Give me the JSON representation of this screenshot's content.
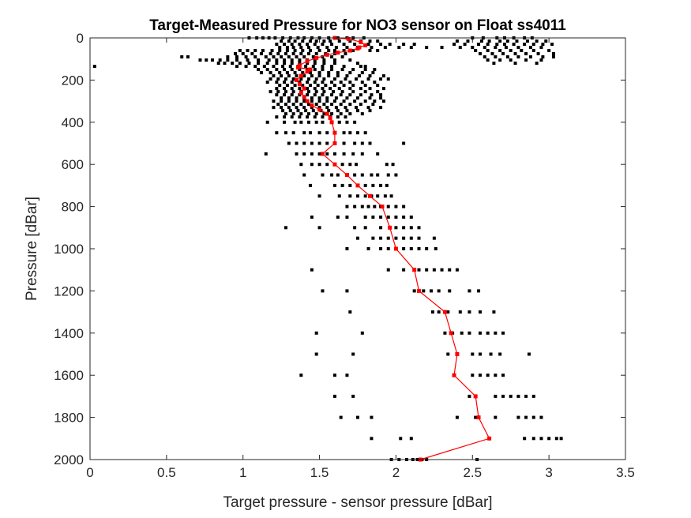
{
  "chart_data": {
    "type": "scatter",
    "title": "Target-Measured Pressure for NO3 sensor on Float ss4011",
    "xlabel": "Target pressure - sensor pressure [dBar]",
    "ylabel": "Pressure [dBar]",
    "xlim": [
      0,
      3.5
    ],
    "ylim": [
      0,
      2000
    ],
    "y_reversed": true,
    "x_ticks": [
      "0",
      "0.5",
      "1",
      "1.5",
      "2",
      "2.5",
      "3",
      "3.5"
    ],
    "y_ticks": [
      "0",
      "200",
      "400",
      "600",
      "800",
      "1000",
      "1200",
      "1400",
      "1600",
      "1800",
      "2000"
    ],
    "grid": false,
    "colors": {
      "points": "#000000",
      "mean_line": "#ff0000",
      "axes": "#262626"
    },
    "series": [
      {
        "marker": "square",
        "color": "#000000",
        "rows": [
          {
            "y": 0,
            "x": [
              1.04,
              1.09,
              1.13,
              1.17,
              1.21,
              1.26,
              1.31,
              1.36,
              1.4,
              1.45,
              1.5,
              1.56,
              1.62,
              1.68,
              1.72,
              1.79,
              2.5,
              2.57,
              2.66,
              2.71,
              2.77,
              2.84,
              2.89
            ]
          },
          {
            "y": 15,
            "x": [
              1.25,
              1.3,
              1.34,
              1.39,
              1.44,
              1.48,
              1.53,
              1.57,
              1.63,
              1.7,
              1.77,
              1.83,
              1.88,
              2.4,
              2.47,
              2.56,
              2.61,
              2.68,
              2.73,
              2.79,
              2.86,
              2.92,
              2.98
            ]
          },
          {
            "y": 30,
            "x": [
              1.22,
              1.27,
              1.32,
              1.37,
              1.42,
              1.47,
              1.52,
              1.58,
              1.66,
              1.73,
              1.82,
              1.9,
              1.96,
              2.05,
              2.12,
              2.38,
              2.45,
              2.54,
              2.6,
              2.66,
              2.71,
              2.77,
              2.84,
              2.9,
              2.96,
              3.02
            ]
          },
          {
            "y": 45,
            "x": [
              1.24,
              1.29,
              1.33,
              1.38,
              1.43,
              1.49,
              1.55,
              1.61,
              1.68,
              1.75,
              1.84,
              1.93,
              2.02,
              2.1,
              2.2,
              2.3,
              2.42,
              2.5,
              2.58,
              2.65,
              2.72,
              2.8,
              2.88,
              2.95
            ]
          },
          {
            "y": 60,
            "x": [
              0.98,
              1.03,
              1.08,
              1.13,
              1.19,
              1.24,
              1.29,
              1.34,
              1.39,
              1.44,
              1.5,
              1.56,
              1.6,
              1.66,
              1.72,
              1.83,
              1.88,
              2.52,
              2.6,
              2.68,
              2.75,
              2.82,
              2.9,
              3.0
            ]
          },
          {
            "y": 75,
            "x": [
              0.95,
              1.0,
              1.06,
              1.12,
              1.18,
              1.23,
              1.28,
              1.33,
              1.38,
              1.43,
              1.48,
              1.54,
              1.6,
              1.67,
              2.55,
              2.63,
              2.7,
              2.78,
              2.85,
              2.93,
              3.03
            ]
          },
          {
            "y": 90,
            "x": [
              0.6,
              0.64,
              0.9,
              0.96,
              1.02,
              1.08,
              1.15,
              1.2,
              1.25,
              1.3,
              1.35,
              1.4,
              1.46,
              1.52,
              1.58,
              1.65,
              2.58,
              2.65,
              2.73,
              2.8,
              2.88,
              2.96,
              3.03
            ]
          },
          {
            "y": 105,
            "x": [
              0.72,
              0.76,
              0.8,
              0.85,
              0.9,
              0.96,
              1.03,
              1.1,
              1.17,
              1.22,
              1.27,
              1.32,
              1.37,
              1.42,
              1.47,
              1.53,
              1.6,
              1.7,
              2.6,
              2.68,
              2.75,
              2.85,
              2.95
            ]
          },
          {
            "y": 120,
            "x": [
              0.84,
              0.88,
              0.93,
              0.98,
              1.04,
              1.1,
              1.16,
              1.22,
              1.27,
              1.32,
              1.37,
              1.42,
              1.47,
              1.53,
              1.6,
              1.75,
              2.64,
              2.78,
              2.92
            ]
          },
          {
            "y": 135,
            "x": [
              0.03,
              0.96,
              1.02,
              1.08,
              1.14,
              1.2,
              1.26,
              1.31,
              1.36,
              1.41,
              1.46,
              1.52,
              1.58,
              1.66,
              1.77,
              1.8
            ]
          },
          {
            "y": 150,
            "x": [
              1.1,
              1.16,
              1.22,
              1.27,
              1.32,
              1.37,
              1.42,
              1.47,
              1.52,
              1.58,
              1.65,
              1.72,
              1.8,
              1.86
            ]
          },
          {
            "y": 165,
            "x": [
              1.12,
              1.18,
              1.24,
              1.29,
              1.34,
              1.39,
              1.44,
              1.5,
              1.56,
              1.62,
              1.7,
              1.78,
              1.85
            ]
          },
          {
            "y": 180,
            "x": [
              1.2,
              1.25,
              1.3,
              1.35,
              1.4,
              1.45,
              1.5,
              1.56,
              1.62,
              1.68,
              1.76,
              1.83,
              1.92
            ]
          },
          {
            "y": 195,
            "x": [
              1.18,
              1.23,
              1.28,
              1.33,
              1.38,
              1.43,
              1.48,
              1.53,
              1.6,
              1.67,
              1.74,
              1.82,
              1.9,
              1.95
            ]
          },
          {
            "y": 210,
            "x": [
              1.16,
              1.22,
              1.27,
              1.32,
              1.37,
              1.42,
              1.47,
              1.52,
              1.58,
              1.64,
              1.7,
              1.78,
              1.86
            ]
          },
          {
            "y": 225,
            "x": [
              1.24,
              1.29,
              1.34,
              1.39,
              1.44,
              1.49,
              1.54,
              1.6,
              1.66,
              1.72,
              1.8,
              1.88
            ]
          },
          {
            "y": 240,
            "x": [
              1.22,
              1.27,
              1.32,
              1.37,
              1.42,
              1.47,
              1.52,
              1.57,
              1.63,
              1.7,
              1.77,
              1.83,
              1.92
            ]
          },
          {
            "y": 255,
            "x": [
              1.18,
              1.23,
              1.28,
              1.33,
              1.38,
              1.43,
              1.48,
              1.53,
              1.59,
              1.65,
              1.72,
              1.8,
              1.88
            ]
          },
          {
            "y": 270,
            "x": [
              1.22,
              1.27,
              1.32,
              1.37,
              1.42,
              1.47,
              1.52,
              1.58,
              1.64,
              1.7,
              1.77,
              1.84,
              1.9
            ]
          },
          {
            "y": 285,
            "x": [
              1.25,
              1.3,
              1.35,
              1.4,
              1.45,
              1.5,
              1.55,
              1.61,
              1.68,
              1.75,
              1.83,
              1.9
            ]
          },
          {
            "y": 300,
            "x": [
              1.2,
              1.25,
              1.3,
              1.35,
              1.4,
              1.45,
              1.5,
              1.55,
              1.6,
              1.66,
              1.73,
              1.8,
              1.86,
              1.92
            ]
          },
          {
            "y": 315,
            "x": [
              1.23,
              1.28,
              1.33,
              1.38,
              1.43,
              1.48,
              1.53,
              1.58,
              1.64,
              1.7,
              1.77,
              1.85
            ]
          },
          {
            "y": 330,
            "x": [
              1.2,
              1.25,
              1.3,
              1.35,
              1.4,
              1.45,
              1.5,
              1.55,
              1.61,
              1.67,
              1.74,
              1.82,
              1.9
            ]
          },
          {
            "y": 345,
            "x": [
              1.26,
              1.31,
              1.36,
              1.41,
              1.46,
              1.51,
              1.56,
              1.62,
              1.68,
              1.75,
              1.83
            ]
          },
          {
            "y": 360,
            "x": [
              1.28,
              1.33,
              1.38,
              1.43,
              1.48,
              1.53,
              1.58,
              1.64,
              1.7,
              1.78
            ]
          },
          {
            "y": 375,
            "x": [
              1.22,
              1.27,
              1.32,
              1.37,
              1.42,
              1.47,
              1.52,
              1.57,
              1.62,
              1.67
            ]
          },
          {
            "y": 400,
            "x": [
              1.16,
              1.27,
              1.34,
              1.38,
              1.43,
              1.48,
              1.52,
              1.58,
              1.63,
              1.68,
              1.73
            ]
          },
          {
            "y": 450,
            "x": [
              1.22,
              1.28,
              1.33,
              1.4,
              1.44,
              1.5,
              1.55,
              1.6,
              1.66,
              1.7,
              1.75,
              1.8
            ]
          },
          {
            "y": 500,
            "x": [
              1.3,
              1.35,
              1.4,
              1.45,
              1.5,
              1.55,
              1.6,
              1.66,
              1.73,
              1.78,
              1.83,
              2.05
            ]
          },
          {
            "y": 550,
            "x": [
              1.15,
              1.35,
              1.4,
              1.45,
              1.5,
              1.55,
              1.6,
              1.66,
              1.72,
              1.78,
              1.88
            ]
          },
          {
            "y": 600,
            "x": [
              1.38,
              1.45,
              1.5,
              1.55,
              1.6,
              1.65,
              1.7,
              1.74,
              1.94,
              1.98
            ]
          },
          {
            "y": 650,
            "x": [
              1.4,
              1.52,
              1.58,
              1.62,
              1.68,
              1.73,
              1.78,
              1.84,
              1.88,
              1.95,
              2.0
            ]
          },
          {
            "y": 700,
            "x": [
              1.44,
              1.6,
              1.65,
              1.7,
              1.75,
              1.8,
              1.85,
              1.9,
              1.94
            ]
          },
          {
            "y": 750,
            "x": [
              1.5,
              1.63,
              1.7,
              1.75,
              1.8,
              1.84,
              1.88,
              1.93,
              1.97
            ]
          },
          {
            "y": 800,
            "x": [
              1.68,
              1.73,
              1.78,
              1.82,
              1.86,
              1.9,
              1.95,
              2.0,
              2.05
            ]
          },
          {
            "y": 850,
            "x": [
              1.45,
              1.62,
              1.68,
              1.8,
              1.85,
              1.9,
              1.95,
              2.0,
              2.05,
              2.1
            ]
          },
          {
            "y": 900,
            "x": [
              1.28,
              1.5,
              1.73,
              1.8,
              1.9,
              1.96,
              2.0,
              2.05,
              2.1,
              2.15
            ]
          },
          {
            "y": 950,
            "x": [
              1.75,
              1.85,
              1.9,
              1.95,
              2.0,
              2.05,
              2.1,
              2.15,
              2.25
            ]
          },
          {
            "y": 1000,
            "x": [
              1.68,
              1.82,
              1.9,
              1.95,
              2.0,
              2.05,
              2.1,
              2.15,
              2.2,
              2.26
            ]
          },
          {
            "y": 1100,
            "x": [
              1.45,
              1.95,
              2.05,
              2.15,
              2.2,
              2.25,
              2.3,
              2.35,
              2.4
            ]
          },
          {
            "y": 1200,
            "x": [
              1.52,
              1.68,
              2.12,
              2.18,
              2.23,
              2.28,
              2.35,
              2.48,
              2.54
            ]
          },
          {
            "y": 1300,
            "x": [
              1.7,
              2.24,
              2.28,
              2.34,
              2.42,
              2.48,
              2.55,
              2.64
            ]
          },
          {
            "y": 1400,
            "x": [
              1.48,
              1.78,
              2.32,
              2.37,
              2.43,
              2.48,
              2.55,
              2.6,
              2.65,
              2.7
            ]
          },
          {
            "y": 1500,
            "x": [
              1.48,
              1.72,
              2.34,
              2.4,
              2.5,
              2.55,
              2.62,
              2.68,
              2.87
            ]
          },
          {
            "y": 1600,
            "x": [
              1.38,
              1.6,
              1.68,
              2.38,
              2.5,
              2.55,
              2.6,
              2.65,
              2.7
            ]
          },
          {
            "y": 1700,
            "x": [
              1.6,
              1.72,
              2.48,
              2.65,
              2.7,
              2.75,
              2.8,
              2.85,
              2.9
            ]
          },
          {
            "y": 1800,
            "x": [
              1.64,
              1.75,
              1.84,
              2.4,
              2.52,
              2.65,
              2.8,
              2.85,
              2.9,
              2.95
            ]
          },
          {
            "y": 1900,
            "x": [
              1.84,
              2.03,
              2.1,
              2.84,
              2.9,
              2.95,
              3.0,
              3.05,
              3.08
            ]
          },
          {
            "y": 2000,
            "x": [
              1.97,
              2.02,
              2.07,
              2.11,
              2.14,
              2.17,
              2.2,
              2.53
            ]
          }
        ]
      },
      {
        "marker": "square",
        "color": "#ff0000",
        "line": true,
        "x": [
          1.6,
          1.69,
          1.77,
          1.8,
          1.76,
          1.75,
          1.7,
          1.62,
          1.55,
          1.48,
          1.42,
          1.37,
          1.36,
          1.44,
          1.42,
          1.38,
          1.35,
          1.37,
          1.4,
          1.38,
          1.4,
          1.42,
          1.45,
          1.5,
          1.55,
          1.57,
          1.58,
          1.6,
          1.6,
          1.52,
          1.6,
          1.68,
          1.75,
          1.83,
          1.91,
          1.96,
          2.0,
          2.12,
          2.15,
          2.32,
          2.36,
          2.4,
          2.38,
          2.52,
          2.54,
          2.61,
          2.16
        ],
        "y": [
          0,
          5,
          20,
          35,
          45,
          50,
          60,
          70,
          80,
          95,
          110,
          130,
          140,
          150,
          160,
          180,
          200,
          220,
          240,
          260,
          280,
          300,
          320,
          340,
          360,
          380,
          400,
          450,
          500,
          550,
          600,
          650,
          700,
          750,
          800,
          900,
          1000,
          1100,
          1200,
          1300,
          1400,
          1500,
          1600,
          1700,
          1800,
          1900,
          2000
        ]
      }
    ]
  }
}
